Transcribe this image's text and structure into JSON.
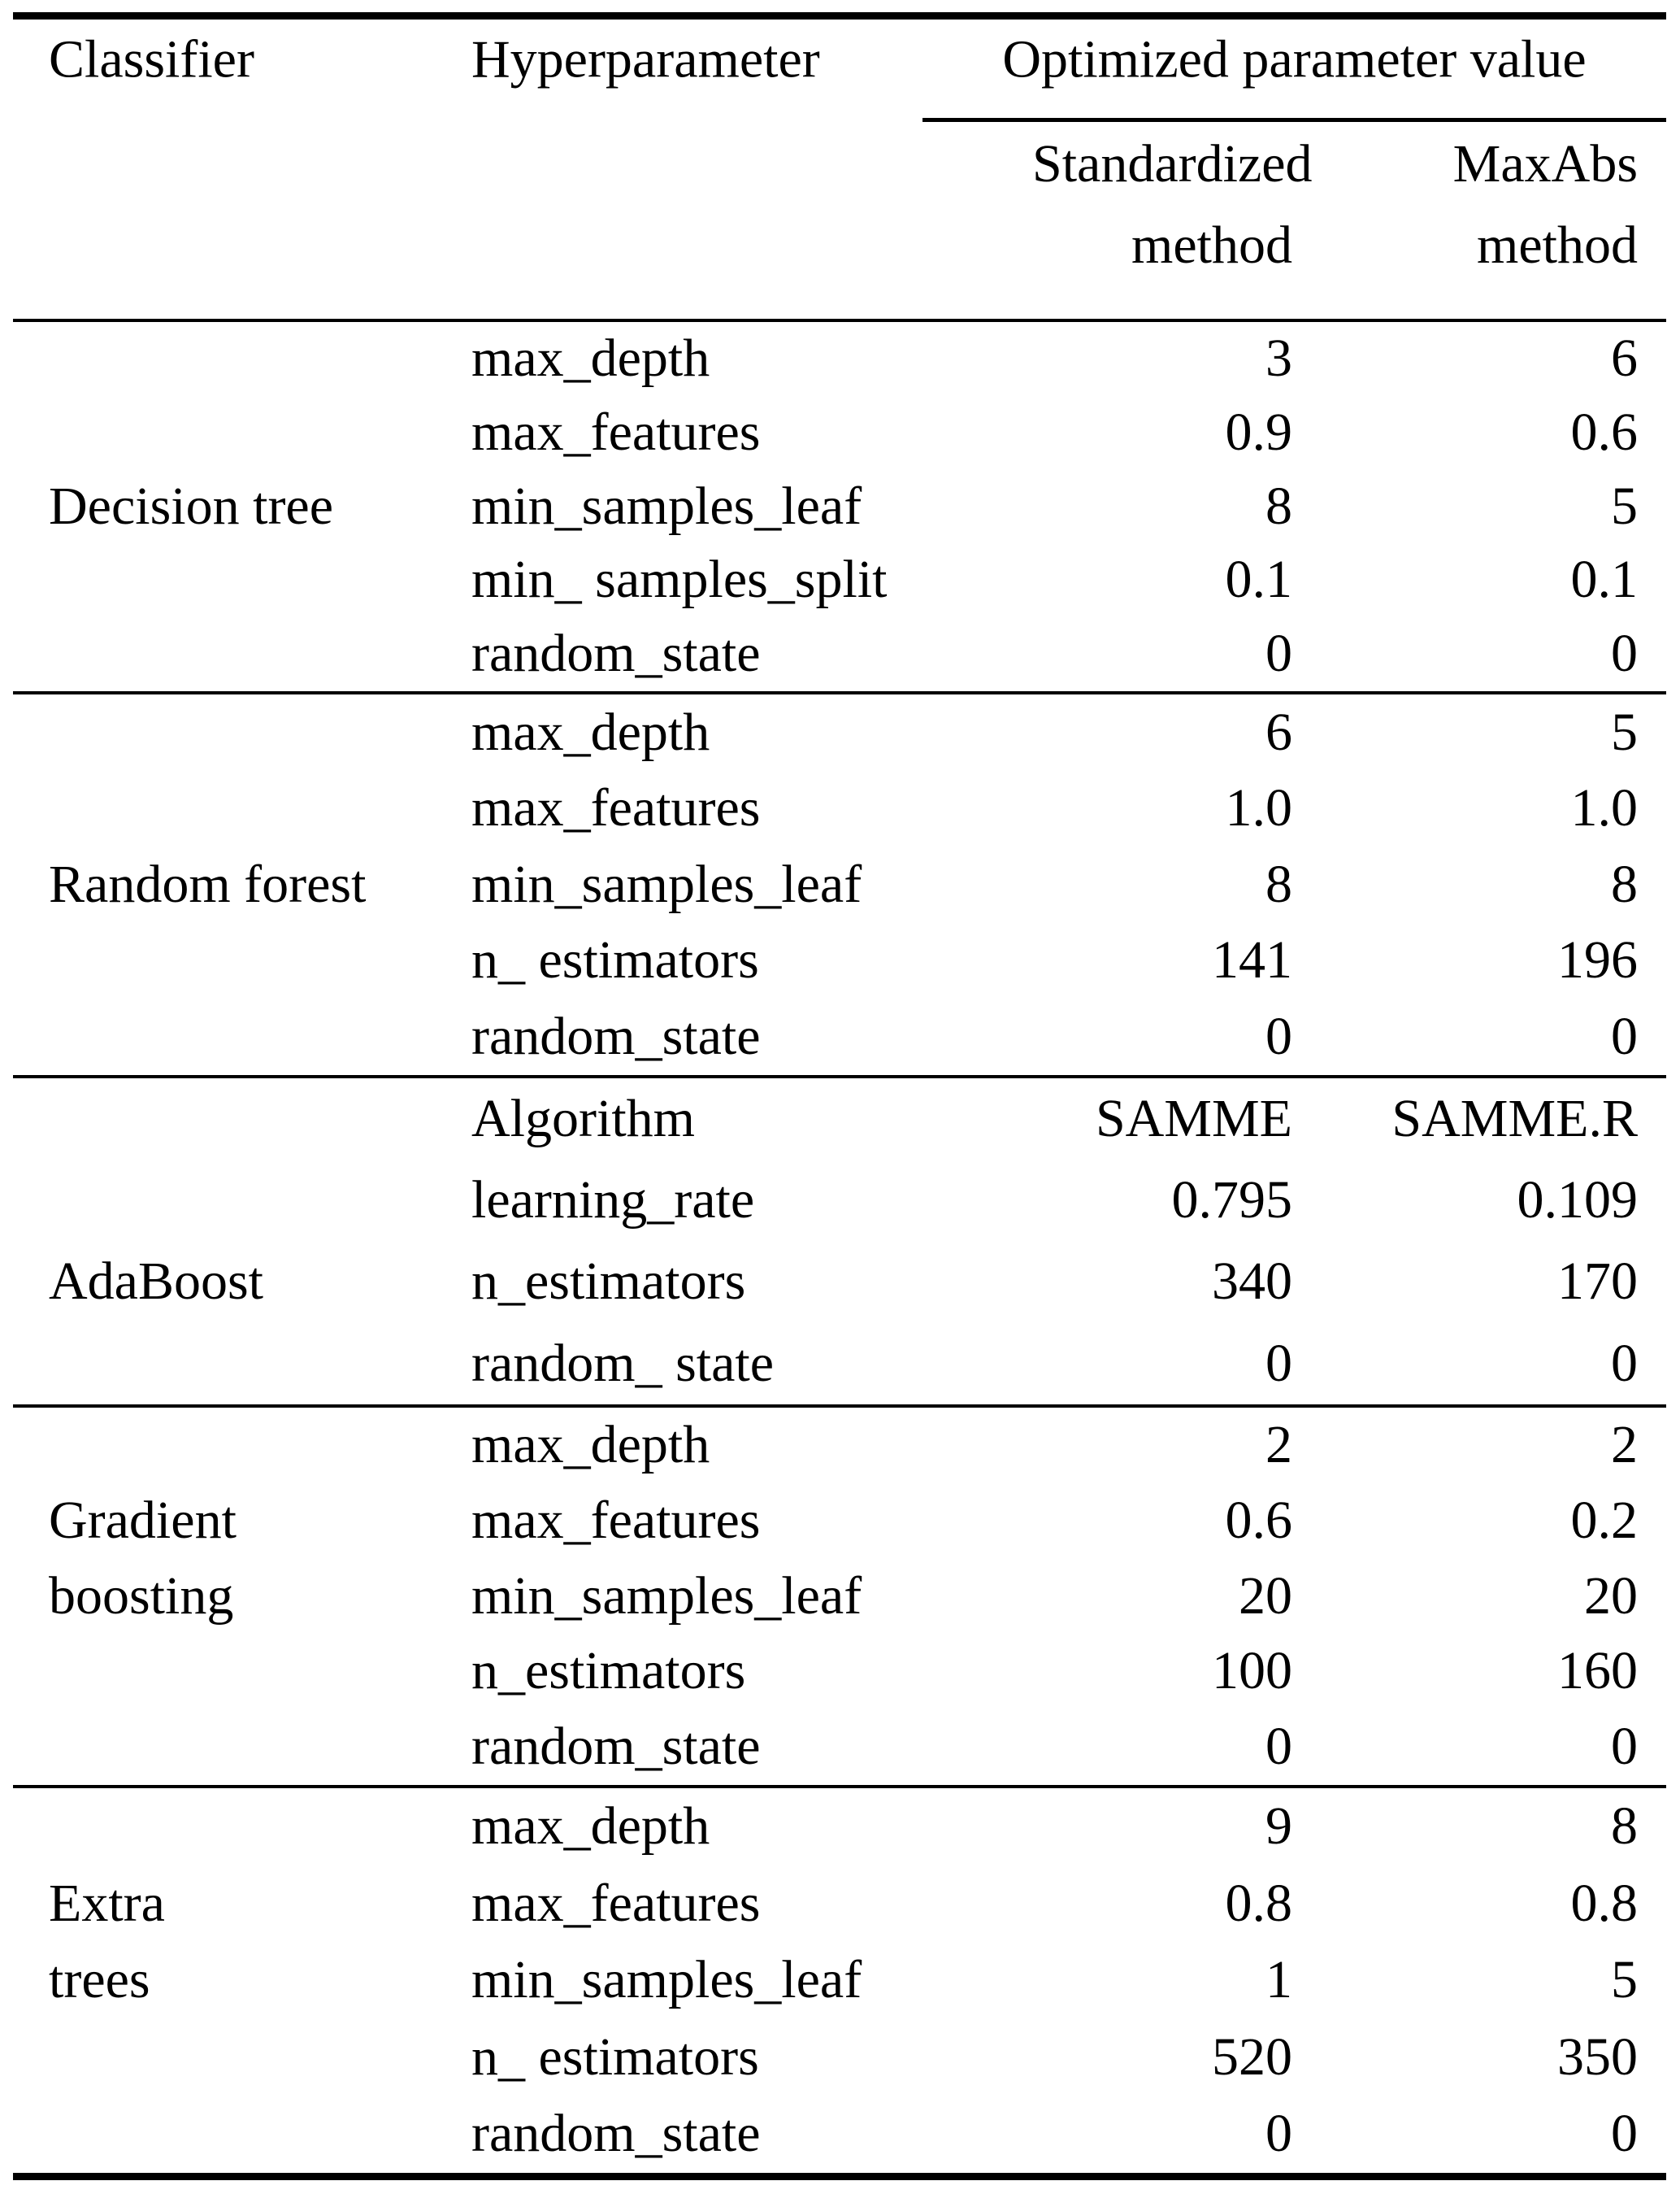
{
  "document": {
    "header": {
      "col_classifier": "Classifier",
      "col_hyperparameter": "Hyperparameter",
      "col_group": "Optimized parameter value",
      "sub_col_1": {
        "line1": "Standardized",
        "line2": "method"
      },
      "sub_col_2": {
        "line1": "MaxAbs",
        "line2": "method"
      }
    },
    "blocks": [
      {
        "classifier": "Decision tree",
        "rows": [
          {
            "classifier": "",
            "hyperparameter": "max_depth",
            "standardized": "3",
            "maxabs": "6"
          },
          {
            "classifier": "",
            "hyperparameter": "max_features",
            "standardized": "0.9",
            "maxabs": "0.6"
          },
          {
            "classifier": "Decision tree",
            "hyperparameter": "min_samples_leaf",
            "standardized": "8",
            "maxabs": "5"
          },
          {
            "classifier": "",
            "hyperparameter": "min_ samples_split",
            "standardized": "0.1",
            "maxabs": "0.1"
          },
          {
            "classifier": "",
            "hyperparameter": "random_state",
            "standardized": "0",
            "maxabs": "0"
          }
        ]
      },
      {
        "classifier": "Random forest",
        "rows": [
          {
            "classifier": "",
            "hyperparameter": "max_depth",
            "standardized": "6",
            "maxabs": "5"
          },
          {
            "classifier": "",
            "hyperparameter": "max_features",
            "standardized": "1.0",
            "maxabs": "1.0"
          },
          {
            "classifier": "Random forest",
            "hyperparameter": "min_samples_leaf",
            "standardized": "8",
            "maxabs": "8"
          },
          {
            "classifier": "",
            "hyperparameter": "n_ estimators",
            "standardized": "141",
            "maxabs": "196"
          },
          {
            "classifier": "",
            "hyperparameter": "random_state",
            "standardized": "0",
            "maxabs": "0"
          }
        ]
      },
      {
        "classifier": "AdaBoost",
        "rows": [
          {
            "classifier": "",
            "hyperparameter": "Algorithm",
            "standardized": "SAMME",
            "maxabs": "SAMME.R"
          },
          {
            "classifier": "",
            "hyperparameter": "learning_rate",
            "standardized": "0.795",
            "maxabs": "0.109"
          },
          {
            "classifier": "AdaBoost",
            "hyperparameter": "n_estimators",
            "standardized": "340",
            "maxabs": "170"
          },
          {
            "classifier": "",
            "hyperparameter": "random_ state",
            "standardized": "0",
            "maxabs": "0"
          }
        ]
      },
      {
        "classifier": "Gradient boosting",
        "rows": [
          {
            "classifier": "",
            "hyperparameter": "max_depth",
            "standardized": "2",
            "maxabs": "2"
          },
          {
            "classifier": "Gradient",
            "hyperparameter": "max_features",
            "standardized": "0.6",
            "maxabs": "0.2"
          },
          {
            "classifier": "boosting",
            "hyperparameter": "min_samples_leaf",
            "standardized": "20",
            "maxabs": "20"
          },
          {
            "classifier": "",
            "hyperparameter": "n_estimators",
            "standardized": "100",
            "maxabs": "160"
          },
          {
            "classifier": "",
            "hyperparameter": "random_state",
            "standardized": "0",
            "maxabs": "0"
          }
        ]
      },
      {
        "classifier": "Extra trees",
        "rows": [
          {
            "classifier": "",
            "hyperparameter": "max_depth",
            "standardized": "9",
            "maxabs": "8"
          },
          {
            "classifier": "Extra",
            "hyperparameter": "max_features",
            "standardized": "0.8",
            "maxabs": "0.8"
          },
          {
            "classifier": "trees",
            "hyperparameter": "min_samples_leaf",
            "standardized": "1",
            "maxabs": "5"
          },
          {
            "classifier": "",
            "hyperparameter": "n_ estimators",
            "standardized": "520",
            "maxabs": "350"
          },
          {
            "classifier": "",
            "hyperparameter": "random_state",
            "standardized": "0",
            "maxabs": "0"
          }
        ]
      }
    ]
  }
}
